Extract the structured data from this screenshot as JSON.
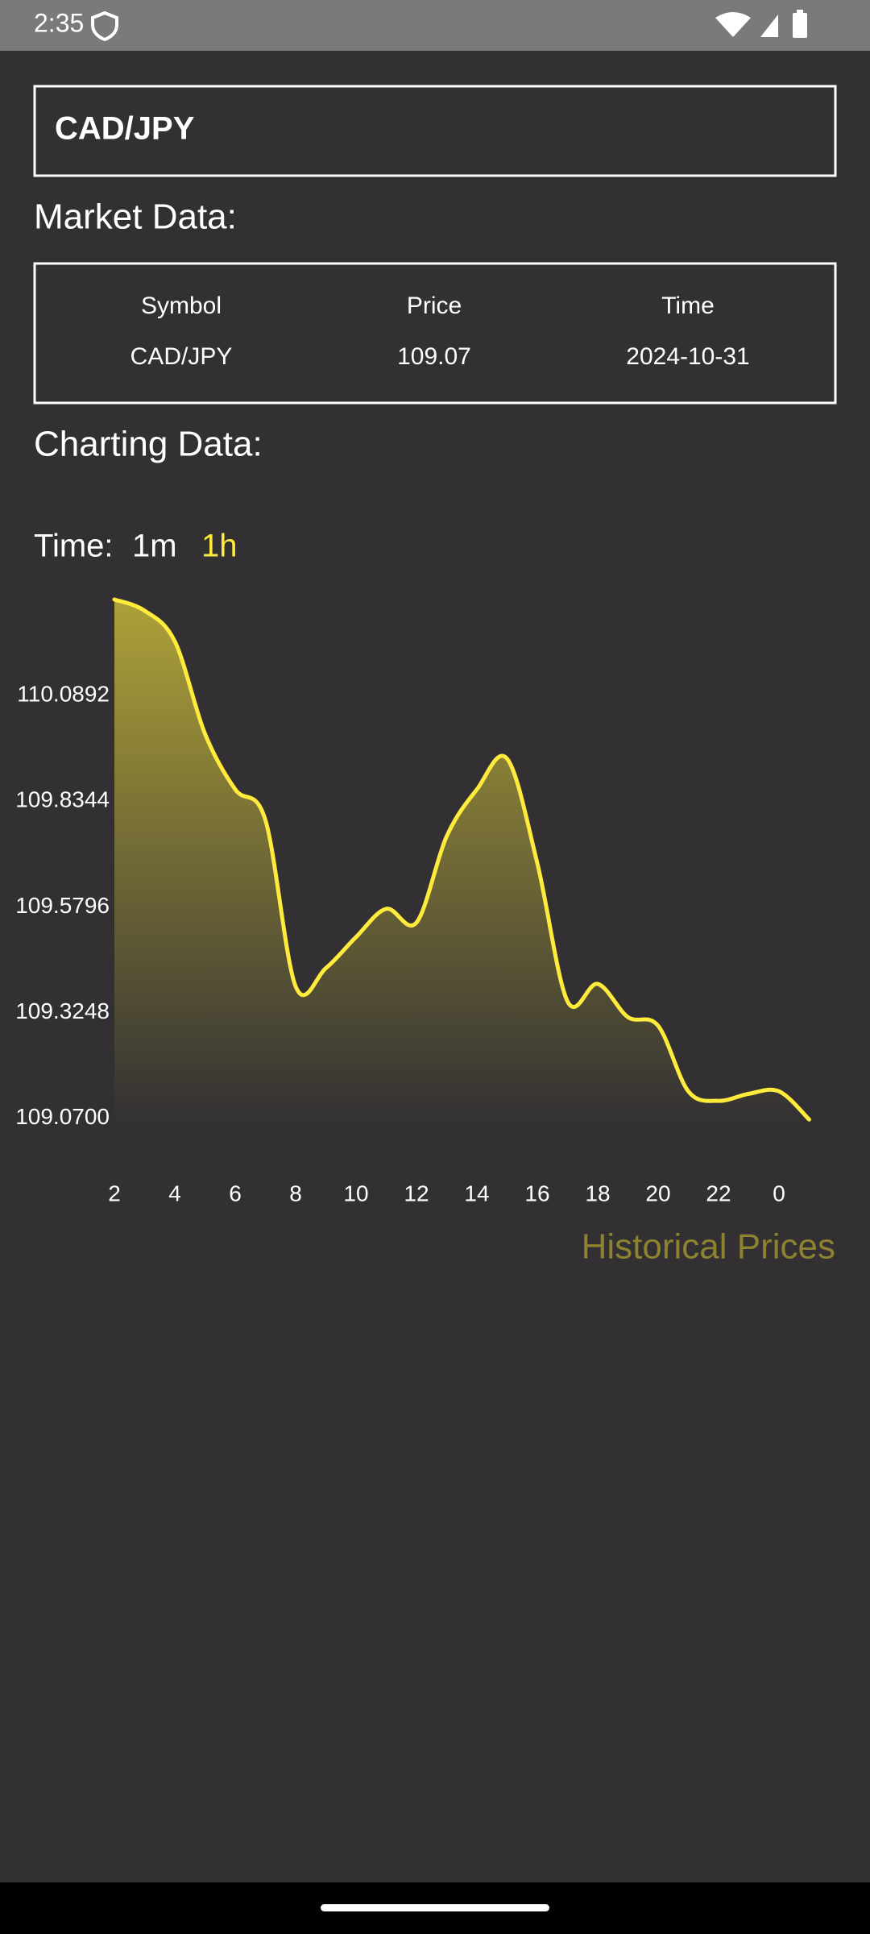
{
  "status_bar": {
    "time": "2:35"
  },
  "header": {
    "title": "CAD/JPY"
  },
  "market_data": {
    "heading": "Market Data:",
    "columns": [
      "Symbol",
      "Price",
      "Time"
    ],
    "rows": [
      [
        "CAD/JPY",
        "109.07",
        "2024-10-31"
      ]
    ]
  },
  "charting": {
    "heading": "Charting Data:",
    "time_label": "Time:",
    "intervals": [
      "1m",
      "1h"
    ]
  },
  "chart_data": {
    "type": "area",
    "categories": [
      "2",
      null,
      "4",
      null,
      "6",
      null,
      "8",
      null,
      "10",
      null,
      "12",
      null,
      "14",
      null,
      "16",
      null,
      "18",
      null,
      "20",
      null,
      "22",
      null,
      "0",
      null
    ],
    "series": [
      {
        "name": "Historical Prices",
        "color": "#ffeb3b",
        "values": [
          110.321,
          110.294,
          110.22,
          109.997,
          109.863,
          109.789,
          109.388,
          109.432,
          109.507,
          109.575,
          109.542,
          109.75,
          109.863,
          109.937,
          109.685,
          109.352,
          109.394,
          109.314,
          109.293,
          109.135,
          109.112,
          109.129,
          109.135,
          109.067
        ]
      }
    ],
    "ylim": [
      109.05,
      110.35
    ],
    "yticks": [
      {
        "value": 109.07,
        "label": "109.0700"
      },
      {
        "value": 109.3248,
        "label": "109.3248"
      },
      {
        "value": 109.5796,
        "label": "109.5796"
      },
      {
        "value": 109.8344,
        "label": "109.8344"
      },
      {
        "value": 110.0892,
        "label": "110.0892"
      }
    ],
    "legend_position": "bottom-right"
  }
}
